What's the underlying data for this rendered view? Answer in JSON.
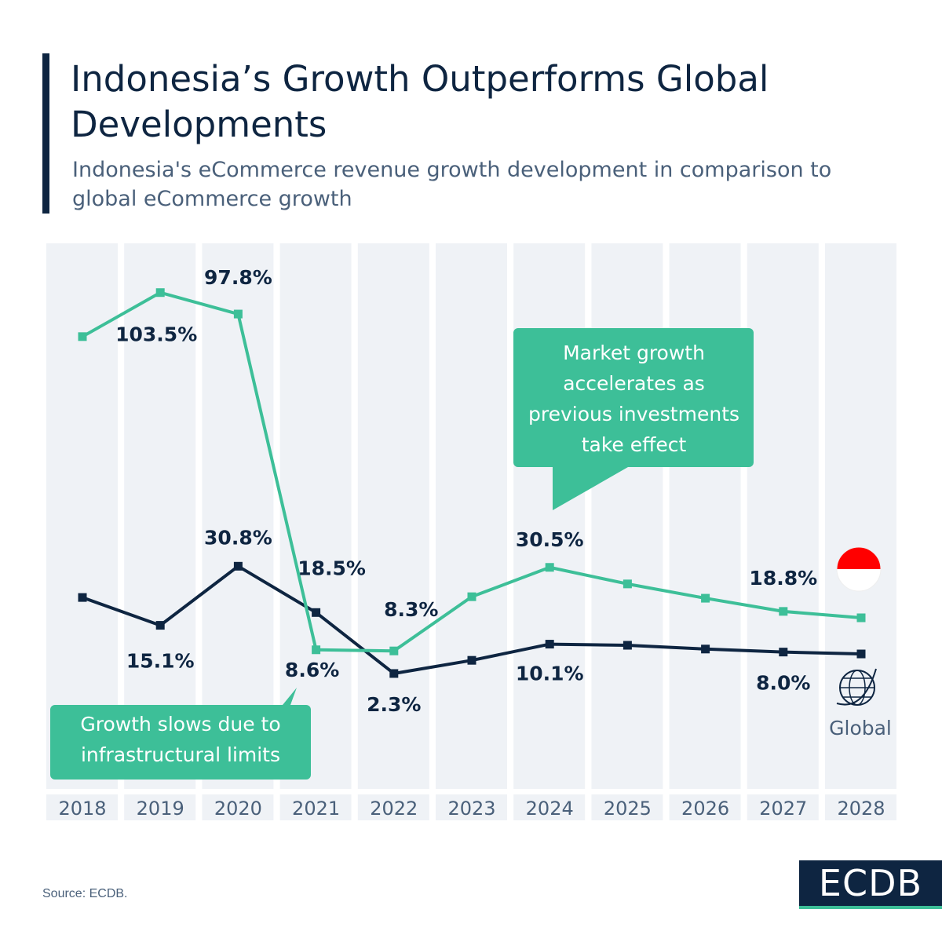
{
  "title": "Indonesia’s Growth Outperforms Global Developments",
  "subtitle": "Indonesia's eCommerce revenue growth development in comparison to global eCommerce growth",
  "source": "Source: ECDB.",
  "logo": "ECDB",
  "colors": {
    "indonesia": "#3dbf98",
    "global": "#0e2541",
    "band": "#eff2f6"
  },
  "callouts": {
    "slowdown": "Growth slows due to infrastructural limits",
    "acceleration": "Market growth accelerates as previous investments take effect"
  },
  "chart_data": {
    "type": "line",
    "categories": [
      "2018",
      "2019",
      "2020",
      "2021",
      "2022",
      "2023",
      "2024",
      "2025",
      "2026",
      "2027",
      "2028"
    ],
    "ylim": [
      0,
      110
    ],
    "grid": false,
    "series": [
      {
        "key": "indonesia",
        "icon": "indonesia-flag-icon",
        "values": [
          91.8,
          103.5,
          97.8,
          8.6,
          8.3,
          22.7,
          30.5,
          26.1,
          22.3,
          18.8,
          17.1
        ],
        "labels": [
          null,
          "103.5%",
          "97.8%",
          "8.6%",
          "8.3%",
          null,
          "30.5%",
          null,
          null,
          "18.8%",
          null
        ]
      },
      {
        "key": "global",
        "name": "Global",
        "icon": "globe-icon",
        "values": [
          22.5,
          15.1,
          30.8,
          18.5,
          2.3,
          5.8,
          10.1,
          9.8,
          8.8,
          8.0,
          7.5
        ],
        "labels": [
          null,
          "15.1%",
          "30.8%",
          "18.5%",
          "2.3%",
          null,
          "10.1%",
          null,
          null,
          "8.0%",
          null
        ]
      }
    ]
  }
}
